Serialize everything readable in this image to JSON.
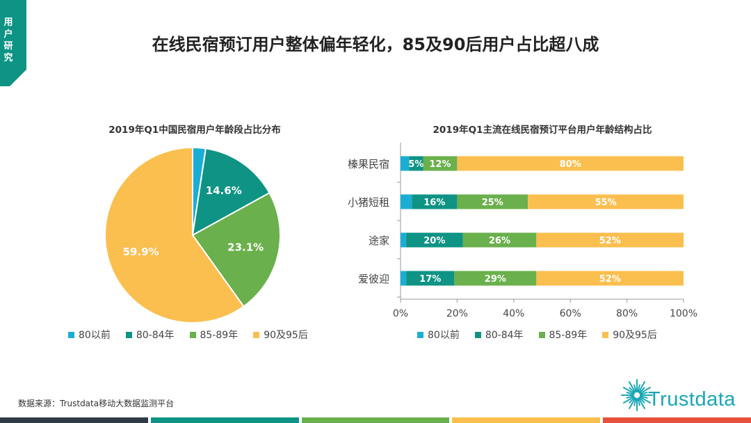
{
  "corner_tab": {
    "label": "用户研究",
    "color": "#0e9384"
  },
  "page_title": "在线民宿预订用户整体偏年轻化，85及90后用户占比超八成",
  "colors": {
    "c80before": "#1aaed4",
    "c80_84": "#0e9384",
    "c85_89": "#6ab04c",
    "c90_95": "#fbbf4f"
  },
  "legend": [
    "80以前",
    "80-84年",
    "85-89年",
    "90及95后"
  ],
  "chart_data": [
    {
      "type": "pie",
      "title": "2019年Q1中国民宿用户年龄段占比分布",
      "slices": [
        {
          "label": "80以前",
          "value": 2.4,
          "display": ""
        },
        {
          "label": "80-84年",
          "value": 14.6,
          "display": "14.6%"
        },
        {
          "label": "85-89年",
          "value": 23.1,
          "display": "23.1%"
        },
        {
          "label": "90及95后",
          "value": 59.9,
          "display": "59.9%"
        }
      ]
    },
    {
      "type": "bar",
      "orientation": "horizontal-stacked-100",
      "title": "2019年Q1主流在线民宿预订平台用户年龄结构占比",
      "categories": [
        "榛果民宿",
        "小猪短租",
        "途家",
        "爱彼迎"
      ],
      "series": [
        {
          "name": "80以前",
          "values": [
            3,
            4,
            2,
            2
          ],
          "labels": [
            "",
            "",
            "",
            ""
          ]
        },
        {
          "name": "80-84年",
          "values": [
            5,
            16,
            20,
            17
          ],
          "labels": [
            "5%",
            "16%",
            "20%",
            "17%"
          ]
        },
        {
          "name": "85-89年",
          "values": [
            12,
            25,
            26,
            29
          ],
          "labels": [
            "12%",
            "25%",
            "26%",
            "29%"
          ]
        },
        {
          "name": "90及95后",
          "values": [
            80,
            55,
            52,
            52
          ],
          "labels": [
            "80%",
            "55%",
            "52%",
            "52%"
          ]
        }
      ],
      "xlim": [
        0,
        100
      ],
      "xticks": [
        "0%",
        "20%",
        "40%",
        "60%",
        "80%",
        "100%"
      ]
    }
  ],
  "source": "数据来源：Trustdata移动大数据监测平台",
  "logo": {
    "text": "Trustdata",
    "color": "#1aa6b4"
  },
  "bottom_bar_colors": [
    "#2e3b45",
    "#0e9384",
    "#6ab04c",
    "#fbbf4f",
    "#e8503a"
  ]
}
